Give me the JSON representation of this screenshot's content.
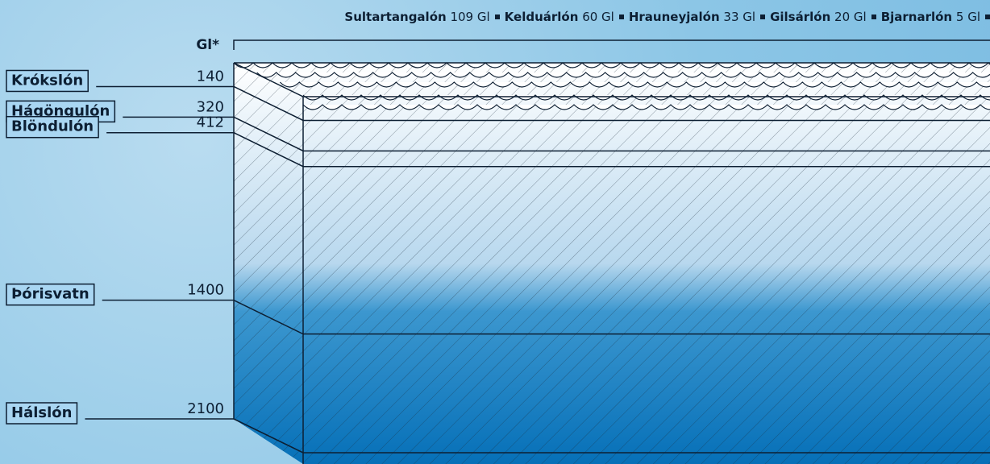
{
  "chart_data": {
    "type": "depth",
    "axis_label": "Gl*",
    "categories": [
      "Krókslón",
      "Hágöngulón",
      "Blöndulón",
      "Þórisvatn",
      "Hálslón"
    ],
    "values": [
      140,
      320,
      412,
      1400,
      2100
    ],
    "ylim": [
      0,
      2100
    ],
    "color": "#0a78bd",
    "other_reservoirs": [
      {
        "name": "Sultartangalón",
        "volume": "109 Gl"
      },
      {
        "name": "Kelduárlón",
        "volume": "60 Gl"
      },
      {
        "name": "Hrauneyjalón",
        "volume": "33 Gl"
      },
      {
        "name": "Gilsárlón",
        "volume": "20 Gl"
      },
      {
        "name": "Bjarnarlón",
        "volume": "5 Gl"
      }
    ]
  }
}
